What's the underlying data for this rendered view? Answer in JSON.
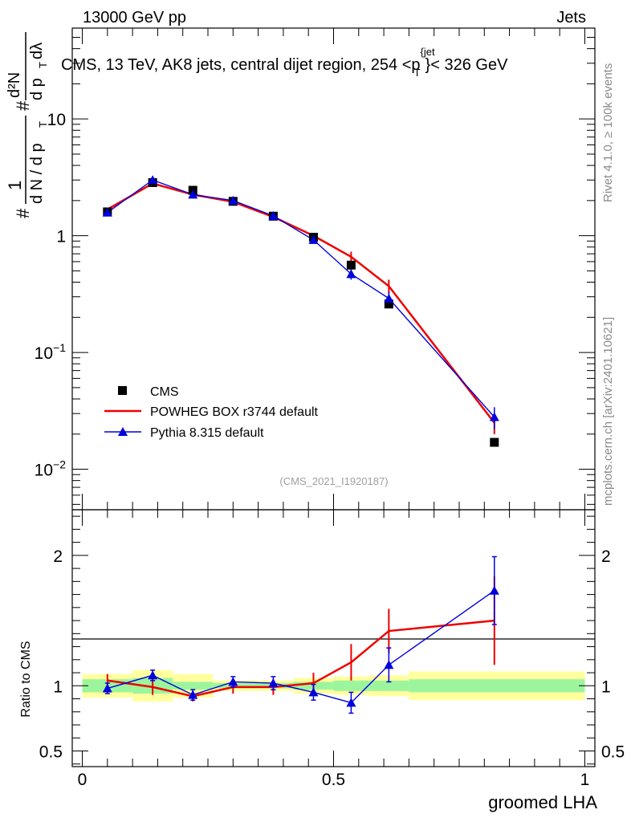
{
  "header": {
    "left": "13000 GeV pp",
    "right": "Jets",
    "plot_title": "CMS, 13 TeV, AK8 jets, central dijet region, 254 <",
    "plot_title_p": "p",
    "plot_title_sup": "{jet",
    "plot_title_sub": "T",
    "plot_title_end": "}< 326 GeV",
    "rivet_label": "Rivet 4.1.0, ≥ 100k events",
    "mcplots_label": "mcplots.cern.ch [arXiv:2401.10621]",
    "analysis_id": "(CMS_2021_I1920187)"
  },
  "axes": {
    "ylabel_parts": {
      "hash": "#",
      "one": "1",
      "dn": "d N / d p",
      "T": "T",
      "d2n": "d²N",
      "dpT": "d p",
      "dl": "dλ"
    },
    "ratio_ylabel": "Ratio to CMS",
    "xlabel": "groomed LHA",
    "main_yticks": [
      {
        "value": 10,
        "base": "10",
        "exp": ""
      },
      {
        "value": 1,
        "base": "1",
        "exp": ""
      },
      {
        "value": 0.1,
        "base": "10",
        "exp": "−1"
      },
      {
        "value": 0.01,
        "base": "10",
        "exp": "−2"
      }
    ],
    "ratio_yticks": [
      {
        "value": 2,
        "label": "2"
      },
      {
        "value": 1,
        "label": "1"
      },
      {
        "value": 0.5,
        "label": "0.5"
      }
    ],
    "xticks": [
      {
        "value": 0,
        "label": "0"
      },
      {
        "value": 0.5,
        "label": "0.5"
      },
      {
        "value": 1,
        "label": "1"
      }
    ]
  },
  "chart_data": {
    "type": "line",
    "title": "CMS, 13 TeV, AK8 jets, central dijet region, 254 < pT jet < 326 GeV",
    "xlabel": "groomed LHA",
    "ylabel": "1/dN/dpT d2N/dpT dlambda",
    "xlim": [
      -0.02,
      1.02
    ],
    "ylim": [
      0.0045,
      60
    ],
    "yscale": "log",
    "ratio_ylim": [
      0.38,
      2.35
    ],
    "ratio_ylabel": "Ratio to CMS",
    "bins": [
      [
        0,
        0.1
      ],
      [
        0.1,
        0.18
      ],
      [
        0.18,
        0.26
      ],
      [
        0.26,
        0.34
      ],
      [
        0.34,
        0.42
      ],
      [
        0.42,
        0.5
      ],
      [
        0.5,
        0.57
      ],
      [
        0.57,
        0.65
      ],
      [
        0.65,
        1.0
      ]
    ],
    "x": [
      0.05,
      0.14,
      0.22,
      0.3,
      0.38,
      0.46,
      0.535,
      0.61,
      0.82
    ],
    "legend": [
      {
        "name": "CMS",
        "color": "#000000"
      },
      {
        "name": "POWHEG BOX r3744 default",
        "color": "#ee0000"
      },
      {
        "name": "Pythia 8.315 default",
        "color": "#0000dd"
      }
    ],
    "series": [
      {
        "name": "CMS",
        "kind": "data",
        "color": "#000000",
        "values": [
          1.6,
          2.85,
          2.45,
          1.97,
          1.47,
          0.97,
          0.56,
          0.26,
          0.017
        ]
      },
      {
        "name": "POWHEG BOX r3744 default",
        "kind": "line",
        "color": "#ee0000",
        "values": [
          1.68,
          2.8,
          2.25,
          1.95,
          1.45,
          1.0,
          0.66,
          0.37,
          0.025
        ],
        "errors": [
          0.05,
          0.08,
          0.06,
          0.06,
          0.05,
          0.05,
          0.07,
          0.05,
          0.005
        ]
      },
      {
        "name": "Pythia 8.315 default",
        "kind": "marker",
        "color": "#0000dd",
        "values": [
          1.58,
          3.0,
          2.25,
          2.0,
          1.48,
          0.92,
          0.47,
          0.29,
          0.028
        ],
        "errors": [
          0.04,
          0.08,
          0.06,
          0.06,
          0.05,
          0.04,
          0.05,
          0.04,
          0.006
        ]
      }
    ],
    "ratio": {
      "band_inner": [
        0.05,
        0.06,
        0.03,
        0.02,
        0.02,
        0.03,
        0.04,
        0.04,
        0.05
      ],
      "band_outer": [
        0.09,
        0.12,
        0.09,
        0.04,
        0.04,
        0.06,
        0.07,
        0.08,
        0.11
      ],
      "POWHEG": {
        "values": [
          1.04,
          0.99,
          0.92,
          0.99,
          0.99,
          1.02,
          1.18,
          1.42,
          1.5
        ],
        "errors": [
          0.05,
          0.06,
          0.04,
          0.05,
          0.06,
          0.08,
          0.14,
          0.17,
          0.34
        ]
      },
      "Pythia": {
        "values": [
          0.98,
          1.08,
          0.93,
          1.03,
          1.02,
          0.95,
          0.87,
          1.16,
          1.73
        ],
        "errors": [
          0.04,
          0.04,
          0.04,
          0.04,
          0.05,
          0.06,
          0.08,
          0.13,
          0.26
        ]
      }
    }
  }
}
